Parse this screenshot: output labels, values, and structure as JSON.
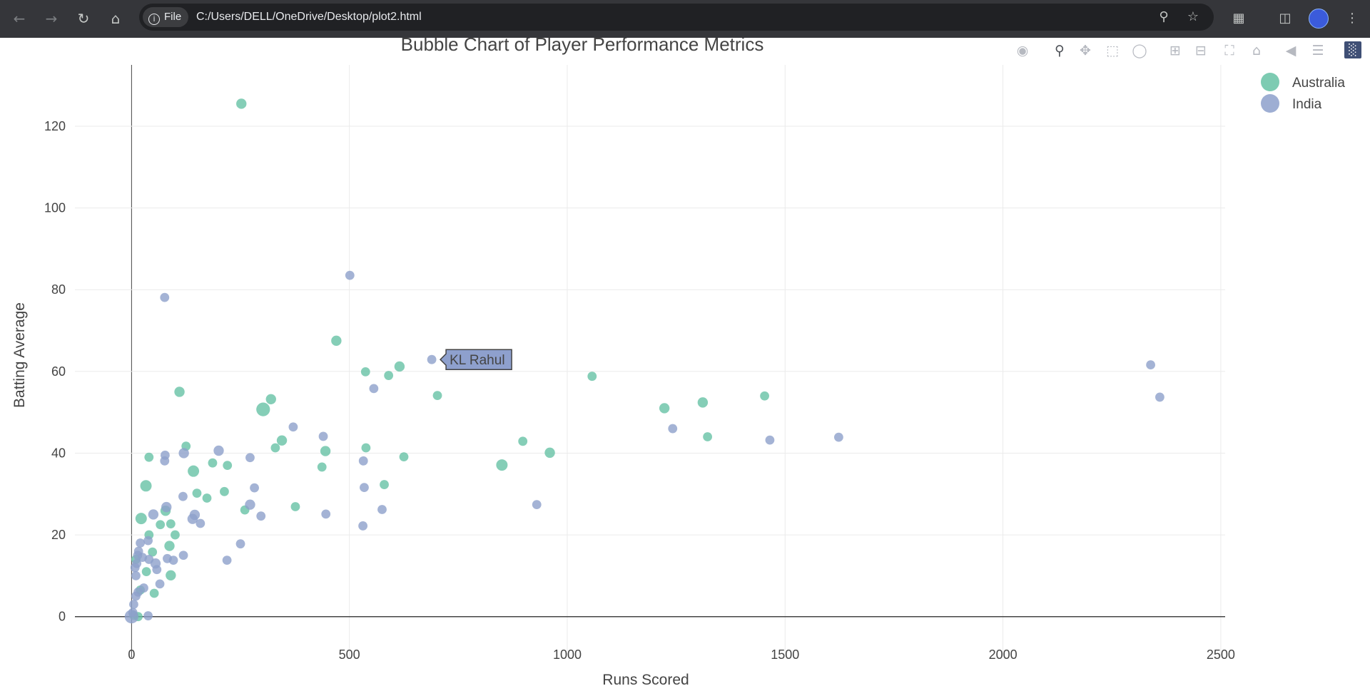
{
  "browser": {
    "back_icon": "arrow-left-icon",
    "forward_icon": "arrow-right-icon",
    "reload_icon": "reload-icon",
    "home_icon": "home-icon",
    "file_chip": "File",
    "url": "C:/Users/DELL/OneDrive/Desktop/plot2.html",
    "zoom_icon": "zoom-icon",
    "star_icon": "star-icon",
    "extensions_icon": "puzzle-icon",
    "sidepanel_icon": "side-panel-icon",
    "avatar": "profile-avatar",
    "menu_icon": "kebab-menu-icon"
  },
  "modebar": [
    "camera-icon",
    "zoom-icon",
    "pan-icon",
    "box-select-icon",
    "lasso-icon",
    "zoom-in-icon",
    "zoom-out-icon",
    "autoscale-icon",
    "reset-axes-icon",
    "hover-closest-icon",
    "hover-compare-icon",
    "plotly-logo-icon"
  ],
  "chart_data": {
    "type": "scatter",
    "title": "Bubble Chart of Player Performance Metrics",
    "xlabel": "Runs Scored",
    "ylabel": "Batting Average",
    "xlim": [
      -130,
      2510
    ],
    "ylim": [
      -10,
      135
    ],
    "xticks": [
      0,
      500,
      1000,
      1500,
      2000,
      2500
    ],
    "yticks": [
      0,
      20,
      40,
      60,
      80,
      100,
      120
    ],
    "grid": true,
    "legend_position": "top-right",
    "series": [
      {
        "name": "Australia",
        "color": "#66c2a5",
        "points": [
          [
            252,
            125.5,
            9
          ],
          [
            470,
            67.5,
            9
          ],
          [
            110,
            55,
            9
          ],
          [
            320,
            53.2,
            9
          ],
          [
            302,
            50.7,
            12
          ],
          [
            615,
            61.2,
            9
          ],
          [
            590,
            59,
            8
          ],
          [
            537,
            59.9,
            8
          ],
          [
            702,
            54.1,
            8
          ],
          [
            1057,
            58.8,
            8
          ],
          [
            1223,
            51,
            9
          ],
          [
            1311,
            52.4,
            9
          ],
          [
            1453,
            54,
            8
          ],
          [
            1322,
            44,
            8
          ],
          [
            898,
            42.9,
            8
          ],
          [
            960,
            40.1,
            9
          ],
          [
            850,
            37.1,
            10
          ],
          [
            625,
            39.1,
            8
          ],
          [
            538,
            41.3,
            8
          ],
          [
            445,
            40.5,
            9
          ],
          [
            437,
            36.6,
            8
          ],
          [
            345,
            43.1,
            9
          ],
          [
            330,
            41.3,
            8
          ],
          [
            376,
            26.9,
            8
          ],
          [
            580,
            32.3,
            8
          ],
          [
            260,
            26.1,
            8
          ],
          [
            220,
            37,
            8
          ],
          [
            213,
            30.6,
            8
          ],
          [
            186,
            37.6,
            8
          ],
          [
            173,
            29,
            8
          ],
          [
            150,
            30.2,
            8
          ],
          [
            142,
            35.6,
            10
          ],
          [
            125,
            41.7,
            8
          ],
          [
            40,
            39,
            8
          ],
          [
            33,
            32,
            10
          ],
          [
            22,
            24,
            10
          ],
          [
            78,
            25.9,
            9
          ],
          [
            66,
            22.5,
            8
          ],
          [
            90,
            22.7,
            8
          ],
          [
            100,
            20,
            8
          ],
          [
            87,
            17.3,
            9
          ],
          [
            48,
            15.8,
            8
          ],
          [
            90,
            10.1,
            9
          ],
          [
            52,
            5.7,
            8
          ],
          [
            34,
            11,
            8
          ],
          [
            20,
            6.5,
            8
          ],
          [
            15,
            0,
            8
          ],
          [
            5,
            0.3,
            8
          ],
          [
            40,
            20,
            8
          ],
          [
            10,
            14,
            8
          ]
        ]
      },
      {
        "name": "India",
        "color": "#8da0cb",
        "points": [
          [
            76,
            78.1,
            8
          ],
          [
            501,
            83.5,
            8
          ],
          [
            689,
            62.9,
            8
          ],
          [
            556,
            55.8,
            8
          ],
          [
            371,
            46.4,
            8
          ],
          [
            440,
            44.1,
            8
          ],
          [
            200,
            40.6,
            9
          ],
          [
            120,
            40,
            9
          ],
          [
            77,
            39.5,
            8
          ],
          [
            76,
            38.1,
            8
          ],
          [
            272,
            38.9,
            8
          ],
          [
            282,
            31.5,
            8
          ],
          [
            532,
            38.1,
            8
          ],
          [
            534,
            31.6,
            8
          ],
          [
            575,
            26.2,
            8
          ],
          [
            446,
            25.1,
            8
          ],
          [
            531,
            22.2,
            8
          ],
          [
            297,
            24.6,
            8
          ],
          [
            272,
            27.4,
            9
          ],
          [
            250,
            17.8,
            8
          ],
          [
            219,
            13.8,
            8
          ],
          [
            145,
            24.9,
            9
          ],
          [
            140,
            23.9,
            9
          ],
          [
            158,
            22.8,
            8
          ],
          [
            118,
            29.4,
            8
          ],
          [
            80,
            26.8,
            9
          ],
          [
            50,
            25,
            9
          ],
          [
            38,
            18.6,
            8
          ],
          [
            20,
            18,
            8
          ],
          [
            16,
            16,
            8
          ],
          [
            14,
            15,
            8
          ],
          [
            8,
            12,
            8
          ],
          [
            10,
            10,
            8
          ],
          [
            40,
            14,
            8
          ],
          [
            55,
            13,
            9
          ],
          [
            58,
            11.5,
            8
          ],
          [
            96,
            13.8,
            8
          ],
          [
            119,
            15,
            8
          ],
          [
            82,
            14.2,
            8
          ],
          [
            65,
            8,
            8
          ],
          [
            28,
            7,
            8
          ],
          [
            15,
            6,
            8
          ],
          [
            10,
            5,
            8
          ],
          [
            5,
            3,
            8
          ],
          [
            3,
            1,
            8
          ],
          [
            0,
            0,
            12
          ],
          [
            38,
            0.2,
            8
          ],
          [
            930,
            27.4,
            8
          ],
          [
            1242,
            46,
            8
          ],
          [
            1465,
            43.2,
            8
          ],
          [
            1623,
            43.9,
            8
          ],
          [
            2339,
            61.6,
            8
          ],
          [
            2360,
            53.7,
            8
          ],
          [
            25,
            14.5,
            8
          ],
          [
            12,
            13,
            8
          ]
        ]
      }
    ],
    "hover_label": {
      "name": "KL Rahul",
      "x": 689,
      "y": 62.9
    }
  }
}
